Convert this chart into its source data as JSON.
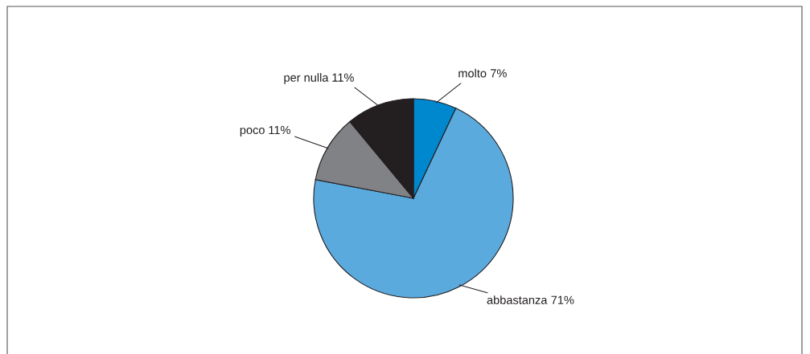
{
  "chart_data": {
    "type": "pie",
    "categories": [
      "molto",
      "abbastanza",
      "poco",
      "per nulla"
    ],
    "values": [
      7,
      71,
      11,
      11
    ],
    "colors": [
      "#0088cf",
      "#5aaade",
      "#808285",
      "#231f20"
    ],
    "value_labels": [
      "7%",
      "71%",
      "11%",
      "11%"
    ]
  }
}
